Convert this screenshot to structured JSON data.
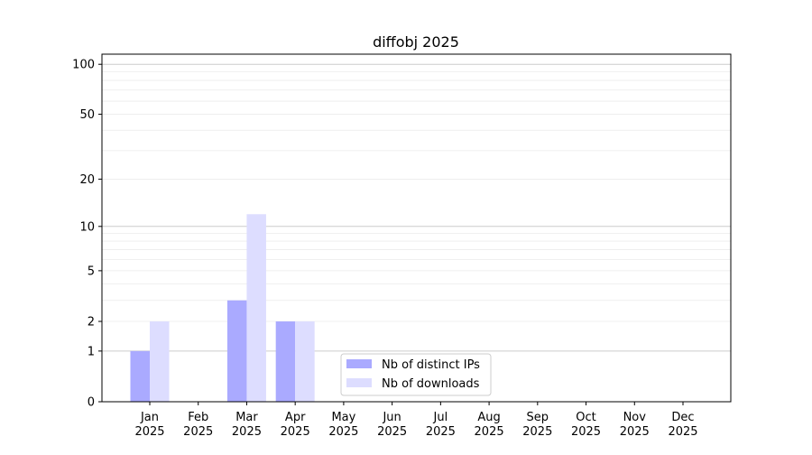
{
  "chart_data": {
    "type": "bar",
    "title": "diffobj 2025",
    "xlabel": "",
    "ylabel": "",
    "yscale": "log(1+y)",
    "ylim": [
      0,
      115
    ],
    "yticks": [
      0,
      1,
      2,
      5,
      10,
      20,
      50,
      100
    ],
    "grid": true,
    "legend_position": "bottom-center",
    "categories": [
      "Jan\n2025",
      "Feb\n2025",
      "Mar\n2025",
      "Apr\n2025",
      "May\n2025",
      "Jun\n2025",
      "Jul\n2025",
      "Aug\n2025",
      "Sep\n2025",
      "Oct\n2025",
      "Nov\n2025",
      "Dec\n2025"
    ],
    "series": [
      {
        "name": "Nb of distinct IPs",
        "color": "#aaaaff",
        "values": [
          1,
          0,
          3,
          2,
          0,
          0,
          0,
          0,
          0,
          0,
          0,
          0
        ]
      },
      {
        "name": "Nb of downloads",
        "color": "#ddddff",
        "values": [
          2,
          0,
          12,
          2,
          0,
          0,
          0,
          0,
          0,
          0,
          0,
          0
        ]
      }
    ]
  }
}
